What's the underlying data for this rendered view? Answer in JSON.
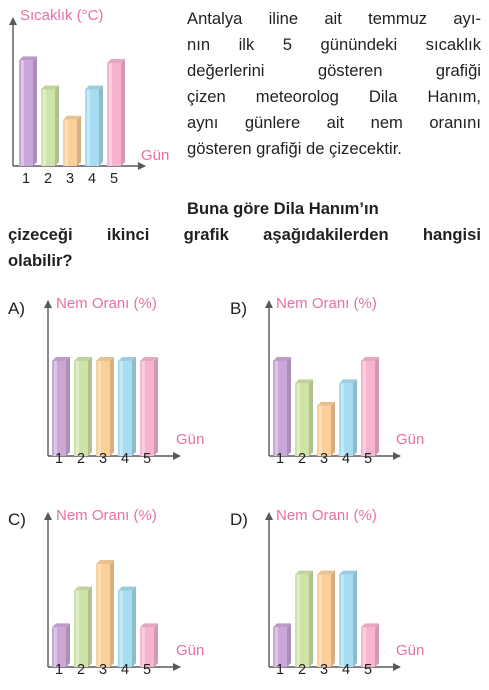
{
  "intro": {
    "lines": [
      "Antalya iline ait temmuz ayı-",
      "nın ilk 5 günündeki sıcaklık",
      "değerlerini gösteren grafiği",
      "çizen meteorolog Dila Hanım,",
      "aynı günlere ait nem oranını",
      "gösteren grafiği de çizecektir."
    ]
  },
  "question": {
    "lines": [
      "Buna göre Dila Hanım’ın",
      "çizeceği ikinci grafik aşağıdakilerden hangisi",
      "olabilir?"
    ]
  },
  "colors": {
    "purple": "#c9a8d8",
    "green": "#cfe3a8",
    "orange": "#fbcf99",
    "blue": "#a7dcf2",
    "pink": "#f7b4d1",
    "axis": "#58595b",
    "title": "#e96fa6"
  },
  "chart_data": [
    {
      "id": "sicaklik",
      "type": "bar",
      "title": "Sıcaklık (°C)",
      "xlabel": "Gün",
      "categories": [
        "1",
        "2",
        "3",
        "4",
        "5"
      ],
      "values": [
        0.8,
        0.58,
        0.35,
        0.58,
        0.78
      ]
    },
    {
      "id": "A",
      "option": "A)",
      "type": "bar",
      "title": "Nem Oranı (%)",
      "xlabel": "Gün",
      "categories": [
        "1",
        "2",
        "3",
        "4",
        "5"
      ],
      "values": [
        0.72,
        0.72,
        0.72,
        0.72,
        0.72
      ]
    },
    {
      "id": "B",
      "option": "B)",
      "type": "bar",
      "title": "Nem Oranı (%)",
      "xlabel": "Gün",
      "categories": [
        "1",
        "2",
        "3",
        "4",
        "5"
      ],
      "values": [
        0.72,
        0.55,
        0.38,
        0.55,
        0.72
      ]
    },
    {
      "id": "C",
      "option": "C)",
      "type": "bar",
      "title": "Nem Oranı (%)",
      "xlabel": "Gün",
      "categories": [
        "1",
        "2",
        "3",
        "4",
        "5"
      ],
      "values": [
        0.3,
        0.58,
        0.78,
        0.58,
        0.3
      ]
    },
    {
      "id": "D",
      "option": "D)",
      "type": "bar",
      "title": "Nem Oranı (%)",
      "xlabel": "Gün",
      "categories": [
        "1",
        "2",
        "3",
        "4",
        "5"
      ],
      "values": [
        0.3,
        0.7,
        0.7,
        0.7,
        0.3
      ]
    }
  ]
}
